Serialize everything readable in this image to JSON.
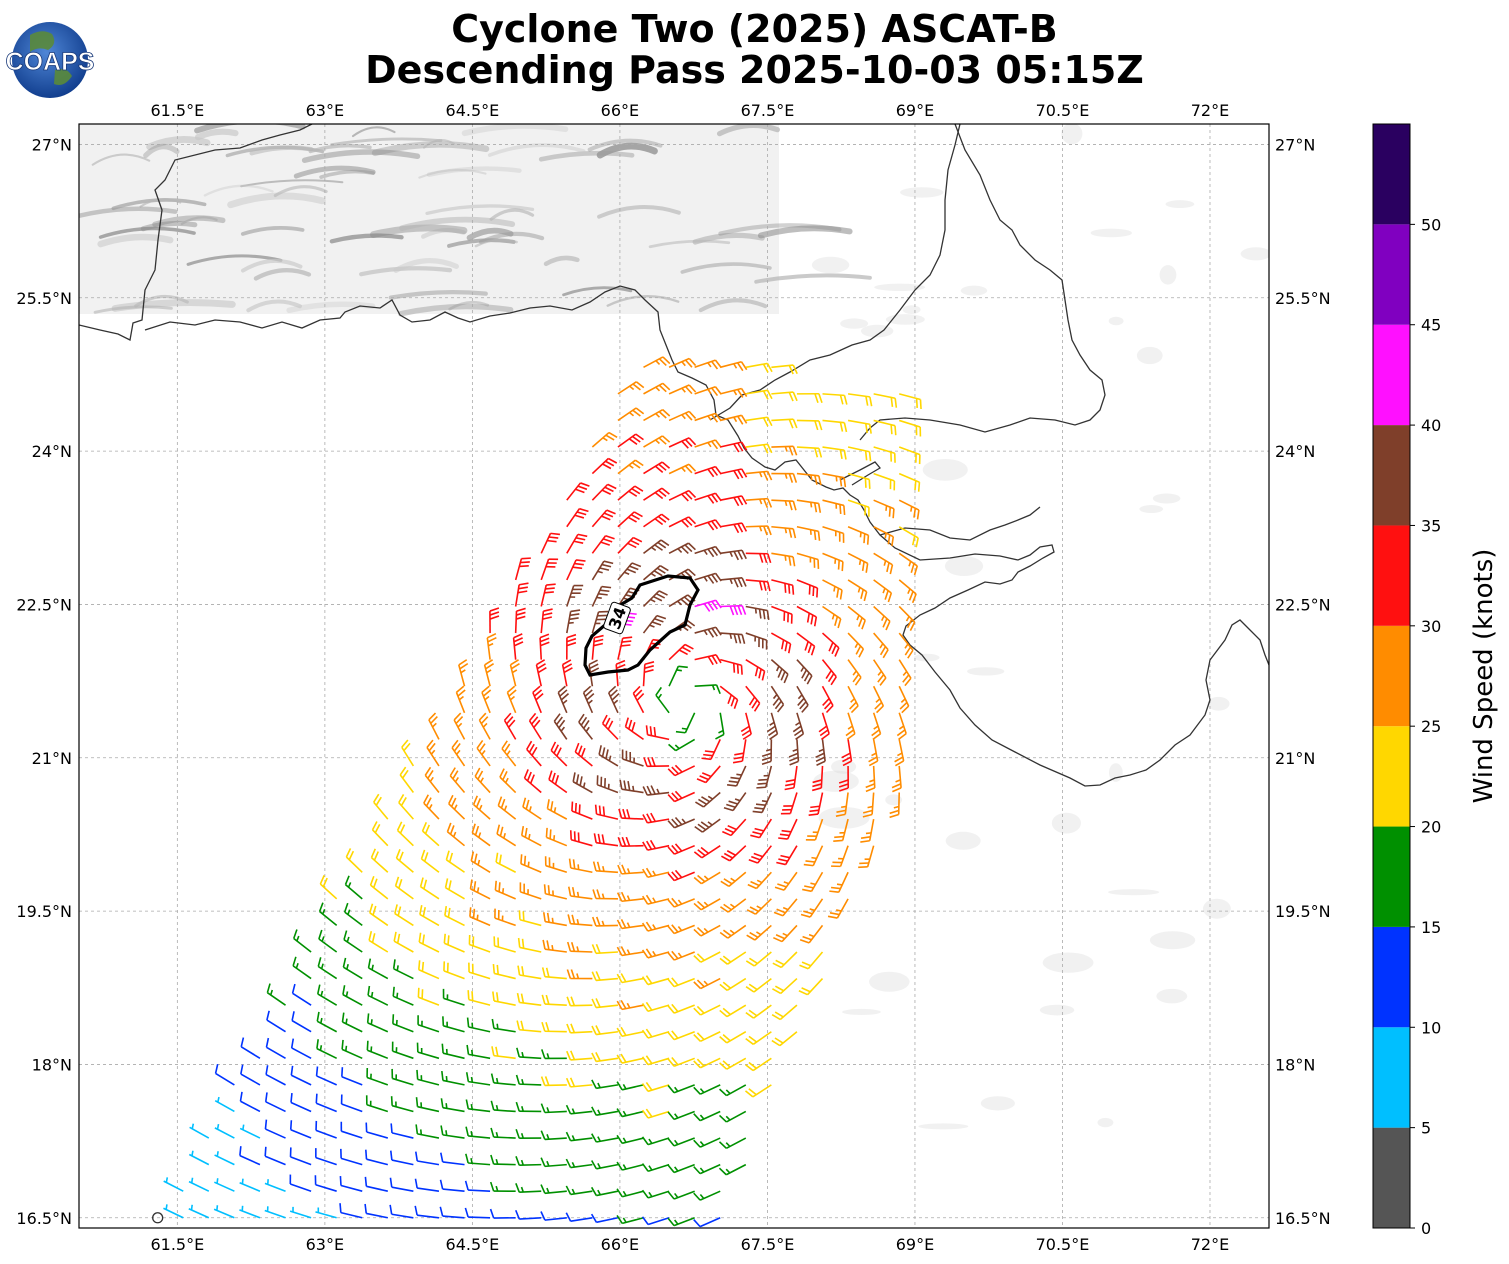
{
  "title": {
    "line1": "Cyclone Two (2025) ASCAT-B",
    "line2": "Descending Pass 2025-10-03 05:15Z"
  },
  "logo": {
    "text": "COAPS"
  },
  "map": {
    "lon_range": [
      60.5,
      72.6
    ],
    "lat_range": [
      16.4,
      27.2
    ],
    "lon_ticks": [
      "61.5°E",
      "63°E",
      "64.5°E",
      "66°E",
      "67.5°E",
      "69°E",
      "70.5°E",
      "72°E"
    ],
    "lon_tick_values": [
      61.5,
      63,
      64.5,
      66,
      67.5,
      69,
      70.5,
      72
    ],
    "lat_ticks": [
      "16.5°N",
      "18°N",
      "19.5°N",
      "21°N",
      "22.5°N",
      "24°N",
      "25.5°N",
      "27°N"
    ],
    "lat_tick_values": [
      16.5,
      18,
      19.5,
      21,
      22.5,
      24,
      25.5,
      27
    ],
    "gridlines": true,
    "storm_center": {
      "lon": 66.7,
      "lat": 21.5
    },
    "contour_label": "34",
    "contour_knots": 34
  },
  "colorbar": {
    "label": "Wind Speed (knots)",
    "ticks": [
      "0",
      "5",
      "10",
      "15",
      "20",
      "25",
      "30",
      "35",
      "40",
      "45",
      "50"
    ],
    "colors": [
      "#555555",
      "#00bfff",
      "#0033ff",
      "#009000",
      "#ffd700",
      "#ff8c00",
      "#ff1010",
      "#7f3f2a",
      "#ff10ff",
      "#8000c0",
      "#2a0060"
    ]
  }
}
